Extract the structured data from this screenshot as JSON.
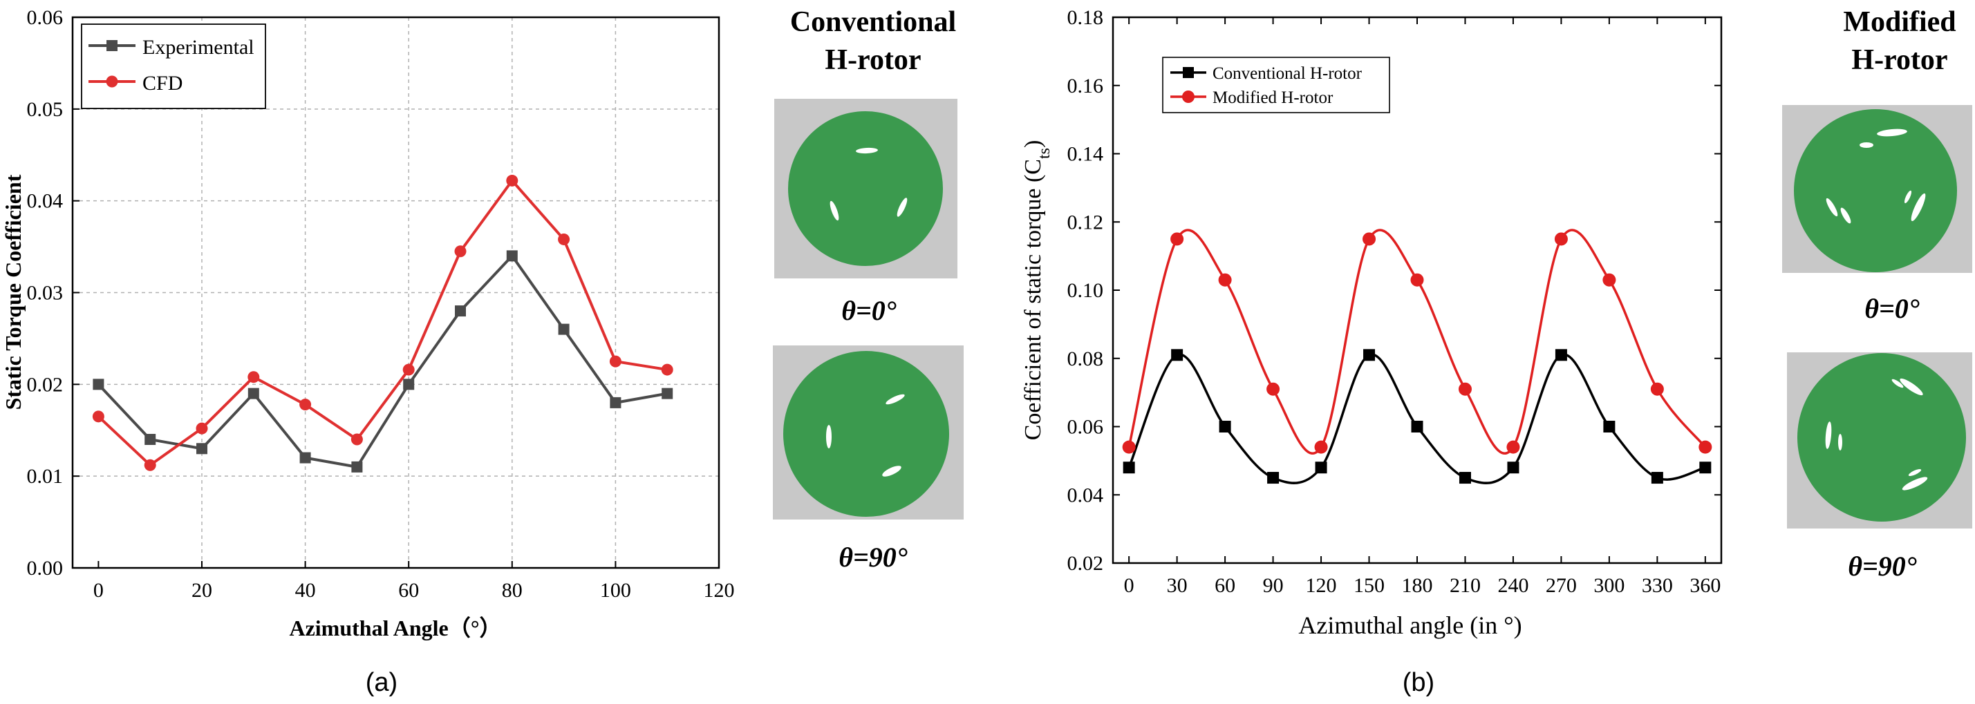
{
  "chart_data": [
    {
      "panel": "a",
      "type": "line",
      "ylabel": "Static Torque Coefficient",
      "xlabel": "Azimuthal Angle（°）",
      "xlim": [
        -5,
        120
      ],
      "ylim": [
        0,
        0.06
      ],
      "xticks": [
        0,
        20,
        40,
        60,
        80,
        100,
        120
      ],
      "yticks": [
        0.0,
        0.01,
        0.02,
        0.03,
        0.04,
        0.05,
        0.06
      ],
      "ytick_labels": [
        "0.00",
        "0.01",
        "0.02",
        "0.03",
        "0.04",
        "0.05",
        "0.06"
      ],
      "grid": true,
      "legend_position": "top-left",
      "series": [
        {
          "name": "Experimental",
          "color": "#4a4a4a",
          "marker": "square",
          "x": [
            0,
            10,
            20,
            30,
            40,
            50,
            60,
            70,
            80,
            90,
            100,
            110
          ],
          "values": [
            0.02,
            0.014,
            0.013,
            0.019,
            0.012,
            0.011,
            0.02,
            0.028,
            0.034,
            0.026,
            0.018,
            0.019
          ]
        },
        {
          "name": "CFD",
          "color": "#e03030",
          "marker": "circle",
          "x": [
            0,
            10,
            20,
            30,
            40,
            50,
            60,
            70,
            80,
            90,
            100,
            110
          ],
          "values": [
            0.0165,
            0.0112,
            0.0152,
            0.0208,
            0.0178,
            0.014,
            0.0216,
            0.0345,
            0.0422,
            0.0358,
            0.0225,
            0.0216
          ]
        }
      ]
    },
    {
      "panel": "b",
      "type": "line",
      "ylabel_main": "Coefficient of static torque (C",
      "ylabel_sub": "ts",
      "ylabel_end": ")",
      "xlabel": "Azimuthal angle (in °)",
      "xlim": [
        -10,
        370
      ],
      "ylim": [
        0.02,
        0.18
      ],
      "xticks": [
        0,
        30,
        60,
        90,
        120,
        150,
        180,
        210,
        240,
        270,
        300,
        330,
        360
      ],
      "yticks": [
        0.02,
        0.04,
        0.06,
        0.08,
        0.1,
        0.12,
        0.14,
        0.16,
        0.18
      ],
      "ytick_labels": [
        "0.02",
        "0.04",
        "0.06",
        "0.08",
        "0.10",
        "0.12",
        "0.14",
        "0.16",
        "0.18"
      ],
      "grid": false,
      "legend_position": "top-left",
      "series": [
        {
          "name": "Conventional H-rotor",
          "color": "#000000",
          "marker": "square",
          "x": [
            0,
            30,
            60,
            90,
            120,
            150,
            180,
            210,
            240,
            270,
            300,
            330,
            360
          ],
          "values": [
            0.048,
            0.081,
            0.06,
            0.045,
            0.048,
            0.081,
            0.06,
            0.045,
            0.048,
            0.081,
            0.06,
            0.045,
            0.048
          ]
        },
        {
          "name": "Modified H-rotor",
          "color": "#e02020",
          "marker": "circle",
          "x": [
            0,
            30,
            60,
            90,
            120,
            150,
            180,
            210,
            240,
            270,
            300,
            330,
            360
          ],
          "values": [
            0.054,
            0.115,
            0.103,
            0.071,
            0.054,
            0.115,
            0.103,
            0.071,
            0.054,
            0.115,
            0.103,
            0.071,
            0.054
          ]
        }
      ]
    }
  ],
  "side_a": {
    "title_line1": "Conventional",
    "title_line2": "H-rotor",
    "label_top": "θ=0°",
    "label_bottom": "θ=90°"
  },
  "side_b": {
    "title_line1": "Modified",
    "title_line2": "H-rotor",
    "label_top": "θ=0°",
    "label_bottom": "θ=90°"
  },
  "captions": {
    "a": "(a)",
    "b": "(b)"
  },
  "colors": {
    "rotor_green": "#3b9a4e",
    "rotor_bg": "#c8c8c8"
  }
}
